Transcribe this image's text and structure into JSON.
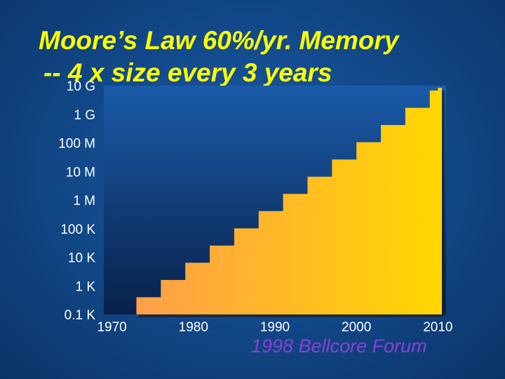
{
  "slide": {
    "title_line1": "Moore’s Law 60%/yr. Memory",
    "title_line2": "-- 4 x size every 3 years",
    "caption": "1998 Bellcore Forum"
  },
  "colors": {
    "title": "#ffff00",
    "caption": "#8a3fd6",
    "fill_start": "#ff9a50",
    "fill_end": "#ffd700",
    "plot_bg_top": "#1a5aa8",
    "plot_bg_bottom": "#08214a"
  },
  "chart_data": {
    "type": "area",
    "title": "",
    "xlabel": "",
    "ylabel": "",
    "x_ticks": [
      1970,
      1980,
      1990,
      2000,
      2010
    ],
    "y_ticks": [
      "0.1 K",
      "1 K",
      "10 K",
      "100 K",
      "1 M",
      "10 M",
      "100 M",
      "1 G",
      "10 G"
    ],
    "y_scale": "log",
    "y_unit": "bits",
    "xlim": [
      1969,
      2011
    ],
    "ylim": [
      100,
      10000000000
    ],
    "step_years": [
      1970,
      1973,
      1976,
      1979,
      1982,
      1985,
      1988,
      1991,
      1994,
      1997,
      2000,
      2003,
      2006,
      2009,
      2010
    ],
    "step_values": [
      100,
      400,
      1600,
      6400,
      25600,
      102400,
      409600,
      1638400,
      6553600,
      26214400,
      104857600,
      419430400,
      1677721600,
      6710886400,
      10000000000
    ],
    "grid": false,
    "legend": "none"
  }
}
